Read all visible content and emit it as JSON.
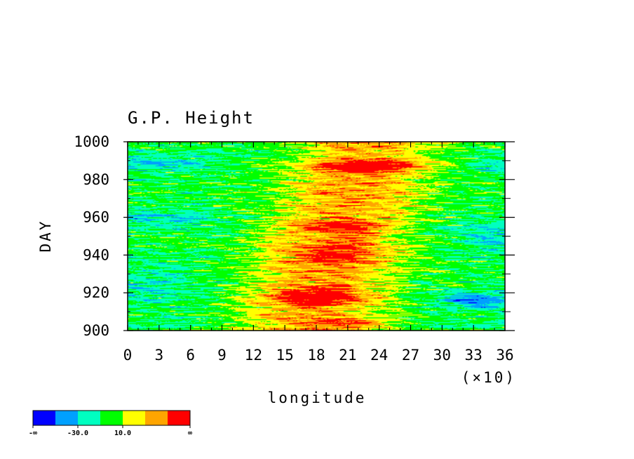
{
  "chart_data": {
    "type": "heatmap",
    "title": "G.P. Height",
    "xlabel": "longitude",
    "ylabel": "DAY",
    "x_scale_note": "(×10)",
    "xlim": [
      0,
      36
    ],
    "ylim": [
      900,
      1000
    ],
    "x_ticks": [
      "0",
      "3",
      "6",
      "9",
      "12",
      "15",
      "18",
      "21",
      "24",
      "27",
      "30",
      "33",
      "36"
    ],
    "y_ticks": [
      "900",
      "920",
      "940",
      "960",
      "980",
      "1000"
    ],
    "colorbar": {
      "colors": [
        "#0000ff",
        "#00a0ff",
        "#00ffc0",
        "#00ff00",
        "#ffff00",
        "#ffa500",
        "#ff0000"
      ],
      "labels": [
        "-∞",
        "-30.0",
        "10.0",
        "∞"
      ]
    },
    "features": [
      {
        "x": 18,
        "y": 918,
        "level": "high",
        "note": "red band around day 915-922, lon 150-230"
      },
      {
        "x": 21,
        "y": 904,
        "level": "high",
        "note": "red patch near day 904, lon 200-240"
      },
      {
        "x": 22,
        "y": 987,
        "level": "high",
        "note": "red band near day 985-990, lon 200-260"
      },
      {
        "x": 20,
        "y": 955,
        "level": "high",
        "note": "red streaks near day 955, lon 180-230"
      },
      {
        "x": 33,
        "y": 916,
        "level": "low",
        "note": "blue patch near day 916, lon 310-350"
      },
      {
        "x": 4,
        "y": 960,
        "level": "low",
        "note": "cyan patches west side"
      }
    ]
  }
}
